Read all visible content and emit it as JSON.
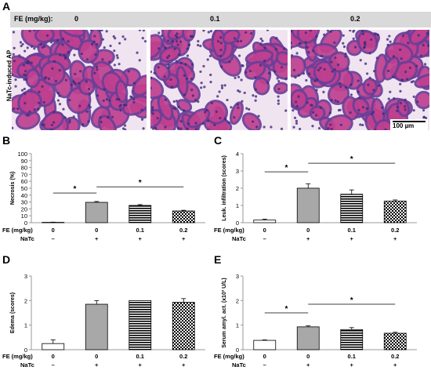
{
  "panel_a": {
    "letter": "A",
    "header_label": "FE (mg/kg):",
    "doses": [
      "0",
      "0.1",
      "0.2"
    ],
    "row_label": "NaTc-induced AP",
    "scale_bar_label": "100 µm"
  },
  "chart_data": [
    {
      "panel": "B",
      "type": "bar",
      "categories": [
        "0",
        "0",
        "0.1",
        "0.2"
      ],
      "fe_row_label": "FE (mg/kg)",
      "natc_row_label": "NaTc",
      "natc": [
        "–",
        "+",
        "+",
        "+"
      ],
      "values": [
        0.5,
        29.5,
        25,
        17
      ],
      "errors": [
        0.3,
        1.2,
        1.2,
        1
      ],
      "fills": [
        "white",
        "gray",
        "hstripe",
        "checker"
      ],
      "ylabel": "Necrosis (%)",
      "ylim": [
        0,
        100
      ],
      "yticks": [
        0,
        10,
        20,
        30,
        40,
        50,
        60,
        70,
        80,
        90,
        100
      ],
      "sig": [
        {
          "from": 0,
          "to": 1,
          "label": "*",
          "level": 43
        },
        {
          "from": 1,
          "to": 3,
          "label": "*",
          "level": 52
        }
      ]
    },
    {
      "panel": "C",
      "type": "bar",
      "categories": [
        "0",
        "0",
        "0.1",
        "0.2"
      ],
      "fe_row_label": "FE (mg/kg)",
      "natc_row_label": "NaTc",
      "natc": [
        "–",
        "+",
        "+",
        "+"
      ],
      "values": [
        0.15,
        2.0,
        1.65,
        1.25
      ],
      "errors": [
        0.05,
        0.25,
        0.25,
        0.07
      ],
      "fills": [
        "white",
        "gray",
        "hstripe",
        "checker"
      ],
      "ylabel": "Leuk. infiltration (scores)",
      "ylim": [
        0,
        4
      ],
      "yticks": [
        0,
        1,
        2,
        3,
        4
      ],
      "sig": [
        {
          "from": 0,
          "to": 1,
          "label": "*",
          "level": 2.95
        },
        {
          "from": 1,
          "to": 3,
          "label": "*",
          "level": 3.45
        }
      ]
    },
    {
      "panel": "D",
      "type": "bar",
      "categories": [
        "0",
        "0",
        "0.1",
        "0.2"
      ],
      "fe_row_label": "FE (mg/kg)",
      "natc_row_label": "NaTc",
      "natc": [
        "–",
        "+",
        "+",
        "+"
      ],
      "values": [
        0.25,
        1.85,
        2.0,
        1.93
      ],
      "errors": [
        0.15,
        0.15,
        0.0,
        0.15
      ],
      "fills": [
        "white",
        "gray",
        "hstripe",
        "checker"
      ],
      "ylabel": "Edema (scores)",
      "ylim": [
        0,
        3
      ],
      "yticks": [
        0,
        1,
        2,
        3
      ],
      "sig": []
    },
    {
      "panel": "E",
      "type": "bar",
      "categories": [
        "0",
        "0",
        "0.1",
        "0.2"
      ],
      "fe_row_label": "FE (mg/kg)",
      "natc_row_label": "NaTc",
      "natc": [
        "–",
        "+",
        "+",
        "+"
      ],
      "values": [
        0.38,
        0.93,
        0.82,
        0.67
      ],
      "errors": [
        0.02,
        0.04,
        0.08,
        0.04
      ],
      "fills": [
        "white",
        "gray",
        "hstripe",
        "checker"
      ],
      "ylabel": "Serum amyl. act. (x10³ U/L)",
      "ylim": [
        0,
        3
      ],
      "yticks": [
        0,
        1,
        2,
        3
      ],
      "sig": [
        {
          "from": 0,
          "to": 1,
          "label": "*",
          "level": 1.5
        },
        {
          "from": 1,
          "to": 3,
          "label": "*",
          "level": 1.85
        }
      ]
    }
  ],
  "colors": {
    "bar_gray": "#a8a8a8",
    "header_bg": "#d9d9d9",
    "tissue_bg": "#f1e4f1",
    "tissue_pink": "#c0408f",
    "tissue_purple": "#6a3f98"
  }
}
